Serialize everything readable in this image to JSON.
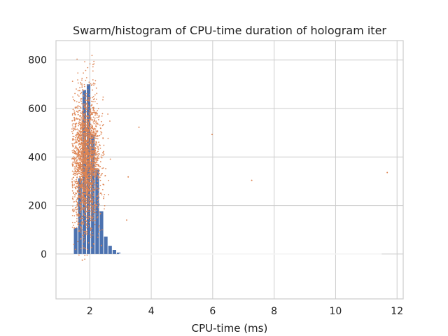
{
  "chart_data": {
    "type": "bar",
    "title": "Swarm/histogram of CPU-time duration of hologram iter",
    "xlabel": "CPU-time (ms)",
    "ylabel": "",
    "xlim": [
      0.9,
      12.2
    ],
    "ylim": [
      -185,
      880
    ],
    "xticks": [
      2,
      4,
      6,
      8,
      10,
      12
    ],
    "yticks": [
      0,
      200,
      400,
      600,
      800
    ],
    "grid": true,
    "bar_color": "#4c72b0",
    "swarm_color": "#dd8452",
    "histogram": {
      "bin_width": 0.14,
      "bins": [
        {
          "x": 1.47,
          "count": 107
        },
        {
          "x": 1.61,
          "count": 312
        },
        {
          "x": 1.75,
          "count": 676
        },
        {
          "x": 1.89,
          "count": 700
        },
        {
          "x": 2.03,
          "count": 492
        },
        {
          "x": 2.17,
          "count": 348
        },
        {
          "x": 2.31,
          "count": 176
        },
        {
          "x": 2.45,
          "count": 72
        },
        {
          "x": 2.59,
          "count": 34
        },
        {
          "x": 2.73,
          "count": 17
        },
        {
          "x": 2.87,
          "count": 6
        },
        {
          "x": 3.01,
          "count": 0
        }
      ]
    },
    "swarm_outliers": [
      {
        "x": 3.6,
        "y": 523
      },
      {
        "x": 5.98,
        "y": 493
      },
      {
        "x": 7.27,
        "y": 304
      },
      {
        "x": 11.68,
        "y": 336
      },
      {
        "x": 3.25,
        "y": 318
      },
      {
        "x": 3.2,
        "y": 140
      }
    ]
  }
}
